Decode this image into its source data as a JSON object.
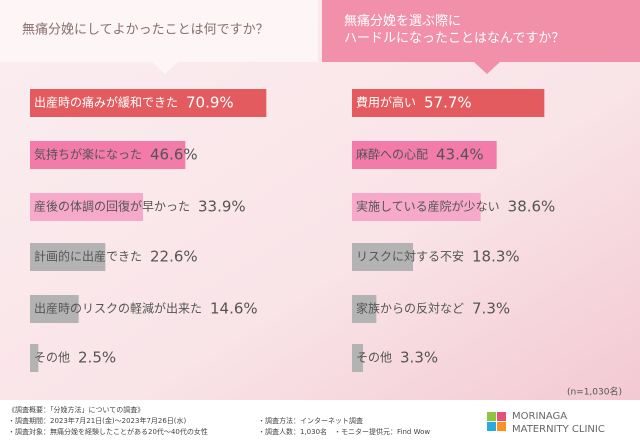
{
  "chart_data": [
    {
      "type": "bar",
      "title": [
        "無痛分娩にしてよかったことは何ですか？"
      ],
      "categories": [
        "出産時の痛みが緩和できた",
        "気持ちが楽になった",
        "産後の体調の回復が早かった",
        "計画的に出産できた",
        "出産時のリスクの軽減が出来た",
        "その他"
      ],
      "values": [
        70.9,
        46.6,
        33.9,
        22.6,
        14.6,
        2.5
      ],
      "value_labels": [
        "70.9%",
        "46.6%",
        "33.9%",
        "22.6%",
        "14.6%",
        "2.5%"
      ],
      "colors": [
        "#e35b5e",
        "#f27ba9",
        "#f6a9c8",
        "#b3b3b3",
        "#b3b3b3",
        "#b3b3b3"
      ]
    },
    {
      "type": "bar",
      "title": [
        "無痛分娩を選ぶ際に",
        "ハードルになったことはなんですか？"
      ],
      "categories": [
        "費用が高い",
        "麻酔への心配",
        "実施している産院が少ない",
        "リスクに対する不安",
        "家族からの反対など",
        "その他"
      ],
      "values": [
        57.7,
        43.4,
        38.6,
        18.3,
        7.3,
        3.3
      ],
      "value_labels": [
        "57.7%",
        "43.4%",
        "38.6%",
        "18.3%",
        "7.3%",
        "3.3%"
      ],
      "colors": [
        "#e35b5e",
        "#f27ba9",
        "#f6a9c8",
        "#b3b3b3",
        "#b3b3b3",
        "#b3b3b3"
      ]
    }
  ],
  "note": "(n=1,030名)",
  "footer": [
    "《調査概要：「分娩方法」についての調査》",
    "・調査期間：2023年7月21日(金)～2023年7月26日(水)",
    "・調査方法：インターネット調査",
    "・調査対象：無痛分娩を経験したことがある20代～40代の女性",
    "・調査人数：1,030名　・モニター提供元：Find Wow"
  ],
  "logo": [
    "MORINAGA",
    "MATERNITY CLINIC"
  ]
}
